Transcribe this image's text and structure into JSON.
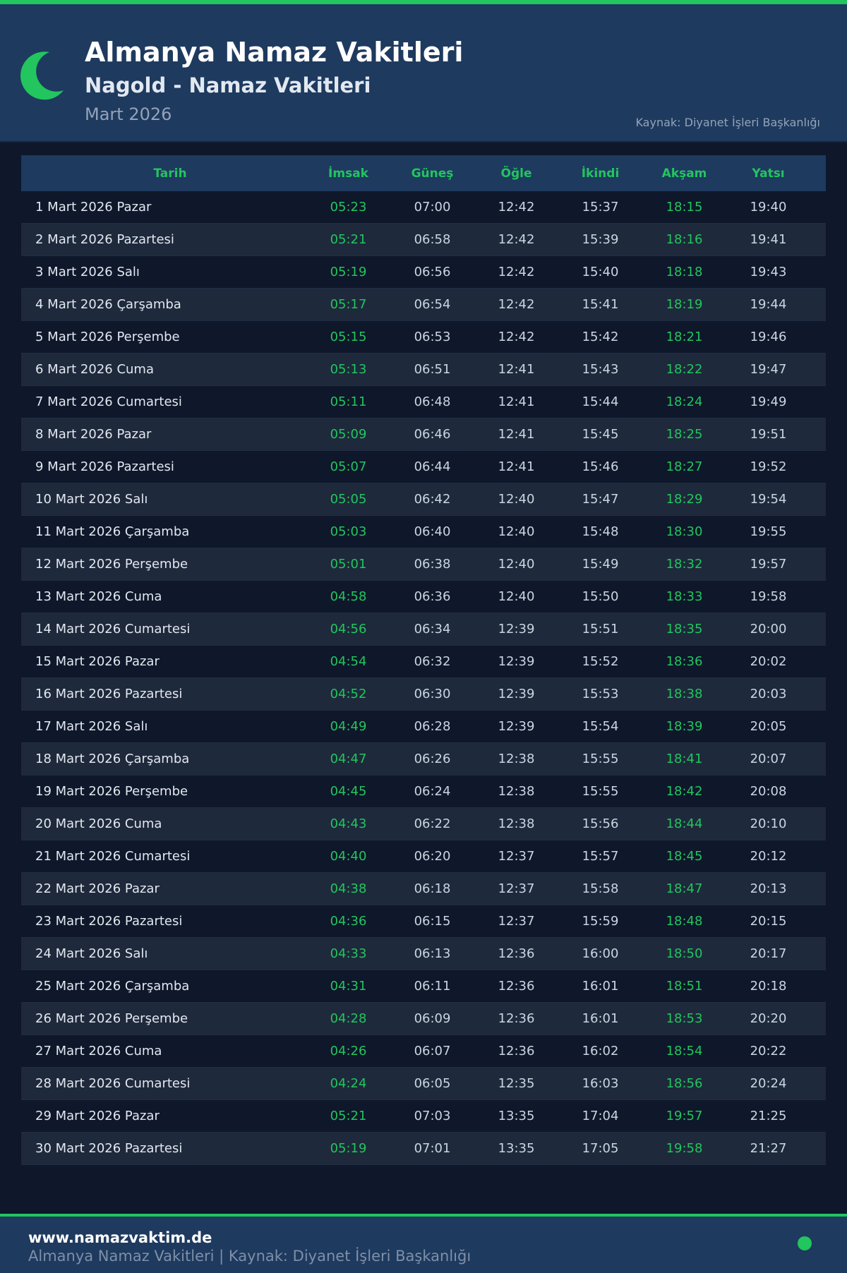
{
  "header": {
    "title": "Almanya Namaz Vakitleri",
    "subtitle": "Nagold - Namaz Vakitleri",
    "month": "Mart 2026",
    "source": "Kaynak: Diyanet İşleri Başkanlığı",
    "logo_icon": "crescent-moon-icon"
  },
  "colors": {
    "accent": "#22c55e",
    "header_bg": "#1e3a5f",
    "page_bg": "#0f172a"
  },
  "table": {
    "columns": [
      "Tarih",
      "İmsak",
      "Güneş",
      "Öğle",
      "İkindi",
      "Akşam",
      "Yatsı"
    ],
    "rows": [
      [
        "1 Mart 2026 Pazar",
        "05:23",
        "07:00",
        "12:42",
        "15:37",
        "18:15",
        "19:40"
      ],
      [
        "2 Mart 2026 Pazartesi",
        "05:21",
        "06:58",
        "12:42",
        "15:39",
        "18:16",
        "19:41"
      ],
      [
        "3 Mart 2026 Salı",
        "05:19",
        "06:56",
        "12:42",
        "15:40",
        "18:18",
        "19:43"
      ],
      [
        "4 Mart 2026 Çarşamba",
        "05:17",
        "06:54",
        "12:42",
        "15:41",
        "18:19",
        "19:44"
      ],
      [
        "5 Mart 2026 Perşembe",
        "05:15",
        "06:53",
        "12:42",
        "15:42",
        "18:21",
        "19:46"
      ],
      [
        "6 Mart 2026 Cuma",
        "05:13",
        "06:51",
        "12:41",
        "15:43",
        "18:22",
        "19:47"
      ],
      [
        "7 Mart 2026 Cumartesi",
        "05:11",
        "06:48",
        "12:41",
        "15:44",
        "18:24",
        "19:49"
      ],
      [
        "8 Mart 2026 Pazar",
        "05:09",
        "06:46",
        "12:41",
        "15:45",
        "18:25",
        "19:51"
      ],
      [
        "9 Mart 2026 Pazartesi",
        "05:07",
        "06:44",
        "12:41",
        "15:46",
        "18:27",
        "19:52"
      ],
      [
        "10 Mart 2026 Salı",
        "05:05",
        "06:42",
        "12:40",
        "15:47",
        "18:29",
        "19:54"
      ],
      [
        "11 Mart 2026 Çarşamba",
        "05:03",
        "06:40",
        "12:40",
        "15:48",
        "18:30",
        "19:55"
      ],
      [
        "12 Mart 2026 Perşembe",
        "05:01",
        "06:38",
        "12:40",
        "15:49",
        "18:32",
        "19:57"
      ],
      [
        "13 Mart 2026 Cuma",
        "04:58",
        "06:36",
        "12:40",
        "15:50",
        "18:33",
        "19:58"
      ],
      [
        "14 Mart 2026 Cumartesi",
        "04:56",
        "06:34",
        "12:39",
        "15:51",
        "18:35",
        "20:00"
      ],
      [
        "15 Mart 2026 Pazar",
        "04:54",
        "06:32",
        "12:39",
        "15:52",
        "18:36",
        "20:02"
      ],
      [
        "16 Mart 2026 Pazartesi",
        "04:52",
        "06:30",
        "12:39",
        "15:53",
        "18:38",
        "20:03"
      ],
      [
        "17 Mart 2026 Salı",
        "04:49",
        "06:28",
        "12:39",
        "15:54",
        "18:39",
        "20:05"
      ],
      [
        "18 Mart 2026 Çarşamba",
        "04:47",
        "06:26",
        "12:38",
        "15:55",
        "18:41",
        "20:07"
      ],
      [
        "19 Mart 2026 Perşembe",
        "04:45",
        "06:24",
        "12:38",
        "15:55",
        "18:42",
        "20:08"
      ],
      [
        "20 Mart 2026 Cuma",
        "04:43",
        "06:22",
        "12:38",
        "15:56",
        "18:44",
        "20:10"
      ],
      [
        "21 Mart 2026 Cumartesi",
        "04:40",
        "06:20",
        "12:37",
        "15:57",
        "18:45",
        "20:12"
      ],
      [
        "22 Mart 2026 Pazar",
        "04:38",
        "06:18",
        "12:37",
        "15:58",
        "18:47",
        "20:13"
      ],
      [
        "23 Mart 2026 Pazartesi",
        "04:36",
        "06:15",
        "12:37",
        "15:59",
        "18:48",
        "20:15"
      ],
      [
        "24 Mart 2026 Salı",
        "04:33",
        "06:13",
        "12:36",
        "16:00",
        "18:50",
        "20:17"
      ],
      [
        "25 Mart 2026 Çarşamba",
        "04:31",
        "06:11",
        "12:36",
        "16:01",
        "18:51",
        "20:18"
      ],
      [
        "26 Mart 2026 Perşembe",
        "04:28",
        "06:09",
        "12:36",
        "16:01",
        "18:53",
        "20:20"
      ],
      [
        "27 Mart 2026 Cuma",
        "04:26",
        "06:07",
        "12:36",
        "16:02",
        "18:54",
        "20:22"
      ],
      [
        "28 Mart 2026 Cumartesi",
        "04:24",
        "06:05",
        "12:35",
        "16:03",
        "18:56",
        "20:24"
      ],
      [
        "29 Mart 2026 Pazar",
        "05:21",
        "07:03",
        "13:35",
        "17:04",
        "19:57",
        "21:25"
      ],
      [
        "30 Mart 2026 Pazartesi",
        "05:19",
        "07:01",
        "13:35",
        "17:05",
        "19:58",
        "21:27"
      ]
    ]
  },
  "footer": {
    "site": "www.namazvaktim.de",
    "note": "Almanya Namaz Vakitleri | Kaynak: Diyanet İşleri Başkanlığı",
    "status_icon": "green-dot-icon"
  }
}
